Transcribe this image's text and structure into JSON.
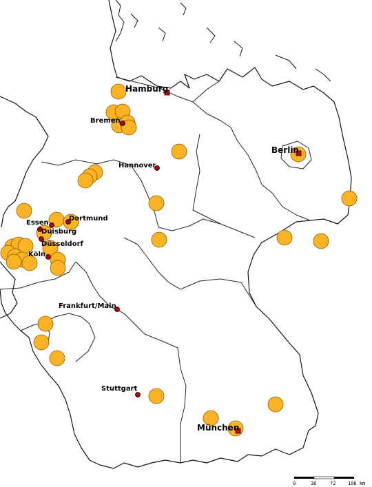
{
  "colors": {
    "marker_fill": "#FDB424",
    "marker_stroke": "#8A5A00",
    "major_city": "#E00000",
    "minor_city": "#B00000",
    "border": "#111111"
  },
  "cities": [
    {
      "name": "Hamburg",
      "rank": "major"
    },
    {
      "name": "Bremen",
      "rank": "minor"
    },
    {
      "name": "Berlin",
      "rank": "major"
    },
    {
      "name": "Hannover",
      "rank": "minor"
    },
    {
      "name": "Dortmund",
      "rank": "minor"
    },
    {
      "name": "Essen",
      "rank": "minor"
    },
    {
      "name": "Duisburg",
      "rank": "minor"
    },
    {
      "name": "Düsseldorf",
      "rank": "minor"
    },
    {
      "name": "Köln",
      "rank": "minor"
    },
    {
      "name": "Frankfurt/Main",
      "rank": "minor"
    },
    {
      "name": "Stuttgart",
      "rank": "minor"
    },
    {
      "name": "München",
      "rank": "major"
    }
  ],
  "scale_bar": {
    "ticks": [
      "0",
      "36",
      "72",
      "108 km"
    ]
  }
}
